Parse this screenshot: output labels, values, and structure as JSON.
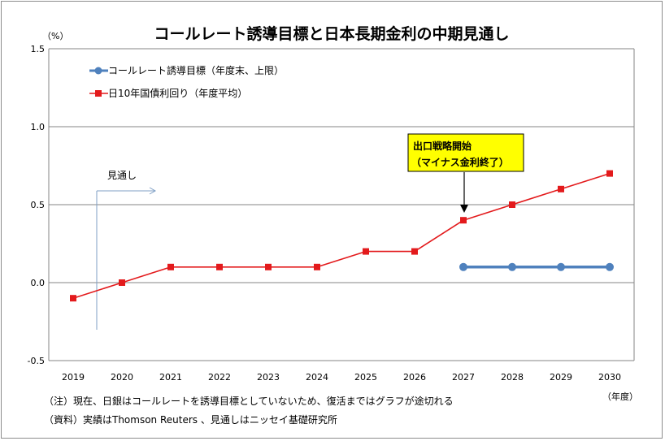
{
  "chart_data": {
    "type": "line",
    "title": "コールレート誘導目標と日本長期金利の中期見通し",
    "yunit": "（%）",
    "xunit": "（年度）",
    "x": [
      "2019",
      "2020",
      "2021",
      "2022",
      "2023",
      "2024",
      "2025",
      "2026",
      "2027",
      "2028",
      "2029",
      "2030"
    ],
    "yticks": [
      "1.5",
      "1.0",
      "0.5",
      "0.0",
      "-0.5"
    ],
    "ylim": [
      -0.5,
      1.5
    ],
    "grid": "horizontal",
    "legend_position": "top-left",
    "series": [
      {
        "name": "コールレート誘導目標（年度末、上限）",
        "color": "#4f81bd",
        "marker": "circle",
        "values": [
          null,
          null,
          null,
          null,
          null,
          null,
          null,
          null,
          0.1,
          0.1,
          0.1,
          0.1
        ]
      },
      {
        "name": "日10年国債利回り（年度平均）",
        "color": "#e31a1c",
        "marker": "square",
        "values": [
          -0.1,
          0.0,
          0.1,
          0.1,
          0.1,
          0.1,
          0.2,
          0.2,
          0.4,
          0.5,
          0.6,
          0.7
        ]
      }
    ],
    "annotations": {
      "forecast_label": "見通し",
      "callout_line1": "出口戦略開始",
      "callout_line2": "（マイナス金利終了）",
      "callout_color": "#ffff00"
    },
    "notes": [
      "（注）現在、日銀はコールレートを誘導目標としていないため、復活まではグラフが途切れる",
      "（資料）実績はThomson Reuters 、見通しはニッセイ基礎研究所"
    ]
  }
}
